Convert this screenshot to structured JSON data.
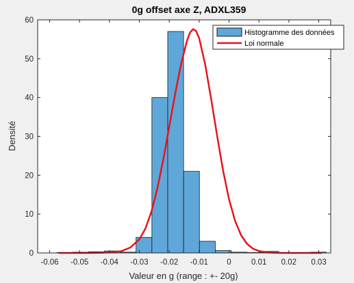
{
  "chart_data": {
    "type": "histogram",
    "title": "0g offset axe Z, ADXL359",
    "xlabel": "Valeur en g (range : +- 20g)",
    "ylabel": "Densité",
    "xlim": [
      -0.064,
      0.034
    ],
    "ylim": [
      0,
      60
    ],
    "xticks": [
      -0.06,
      -0.05,
      -0.04,
      -0.03,
      -0.02,
      -0.01,
      0,
      0.01,
      0.02,
      0.03
    ],
    "xtick_labels": [
      "-0.06",
      "-0.05",
      "-0.04",
      "-0.03",
      "-0.02",
      "-0.01",
      "0",
      "0.01",
      "0.02",
      "0.03"
    ],
    "yticks": [
      0,
      10,
      20,
      30,
      40,
      50,
      60
    ],
    "ytick_labels": [
      "0",
      "10",
      "20",
      "30",
      "40",
      "50",
      "60"
    ],
    "grid": false,
    "legend_position": "top-right",
    "series": [
      {
        "name": "Histogramme des données",
        "kind": "bar",
        "color": "#5fa7d9",
        "edge_color": "#1a1a1a",
        "bins": [
          {
            "x0": -0.0576,
            "x1": -0.0523,
            "value": 0.1
          },
          {
            "x0": -0.0523,
            "x1": -0.047,
            "value": 0.2
          },
          {
            "x0": -0.047,
            "x1": -0.0417,
            "value": 0.3
          },
          {
            "x0": -0.0417,
            "x1": -0.0364,
            "value": 0.5
          },
          {
            "x0": -0.0364,
            "x1": -0.0311,
            "value": 0.2
          },
          {
            "x0": -0.0311,
            "x1": -0.0258,
            "value": 4
          },
          {
            "x0": -0.0258,
            "x1": -0.0205,
            "value": 40
          },
          {
            "x0": -0.0205,
            "x1": -0.0152,
            "value": 57
          },
          {
            "x0": -0.0152,
            "x1": -0.0099,
            "value": 21
          },
          {
            "x0": -0.0099,
            "x1": -0.0046,
            "value": 3
          },
          {
            "x0": -0.0046,
            "x1": 0.0007,
            "value": 0.6
          },
          {
            "x0": 0.0007,
            "x1": 0.006,
            "value": 0.2
          },
          {
            "x0": 0.006,
            "x1": 0.0113,
            "value": 0.1
          },
          {
            "x0": 0.0113,
            "x1": 0.0166,
            "value": 0.4
          },
          {
            "x0": 0.0166,
            "x1": 0.0219,
            "value": 0.1
          },
          {
            "x0": 0.0219,
            "x1": 0.0272,
            "value": 0.1
          },
          {
            "x0": 0.0272,
            "x1": 0.0325,
            "value": 0.2
          }
        ]
      },
      {
        "name": "Loi normale",
        "kind": "line",
        "color": "#e8141d",
        "points": [
          [
            -0.057,
            0.0
          ],
          [
            -0.05,
            0.0
          ],
          [
            -0.045,
            0.02
          ],
          [
            -0.04,
            0.12
          ],
          [
            -0.036,
            0.45
          ],
          [
            -0.033,
            1.4
          ],
          [
            -0.03,
            3.5
          ],
          [
            -0.028,
            6.2
          ],
          [
            -0.026,
            10.5
          ],
          [
            -0.024,
            16.5
          ],
          [
            -0.022,
            24.0
          ],
          [
            -0.02,
            32.5
          ],
          [
            -0.018,
            41.0
          ],
          [
            -0.016,
            48.8
          ],
          [
            -0.014,
            54.8
          ],
          [
            -0.013,
            56.8
          ],
          [
            -0.012,
            57.6
          ],
          [
            -0.011,
            57.1
          ],
          [
            -0.01,
            55.3
          ],
          [
            -0.008,
            48.6
          ],
          [
            -0.006,
            39.7
          ],
          [
            -0.004,
            30.2
          ],
          [
            -0.002,
            21.2
          ],
          [
            0.0,
            13.8
          ],
          [
            0.002,
            8.3
          ],
          [
            0.004,
            4.6
          ],
          [
            0.006,
            2.35
          ],
          [
            0.008,
            1.1
          ],
          [
            0.01,
            0.47
          ],
          [
            0.013,
            0.12
          ],
          [
            0.016,
            0.02
          ],
          [
            0.02,
            0.0
          ],
          [
            0.026,
            0.0
          ],
          [
            0.031,
            0.0
          ]
        ]
      }
    ]
  }
}
